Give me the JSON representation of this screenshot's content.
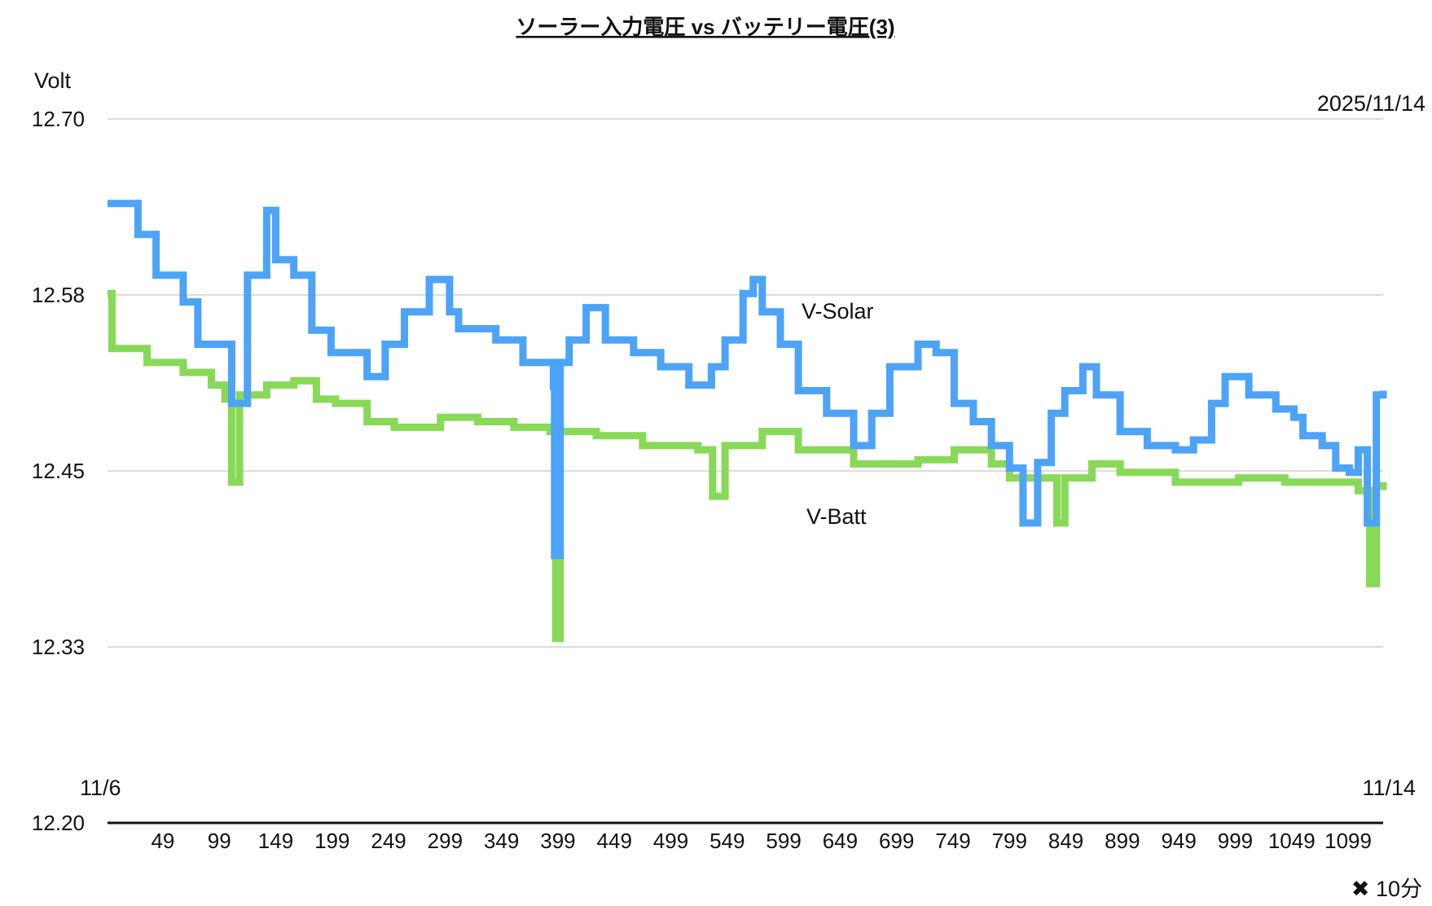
{
  "chart_data": {
    "type": "line",
    "title": "ソーラー入力電圧 vs バッテリー電圧(3)",
    "ylabel": "Volt",
    "xlabel": "✖ 10分",
    "date_label": "2025/11/14",
    "x_start_label": "11/6",
    "x_end_label": "11/14",
    "ylim": [
      12.2,
      12.7
    ],
    "xlim": [
      0,
      1130
    ],
    "grid": true,
    "y_ticks": [
      {
        "value": 12.7,
        "label": "12.70"
      },
      {
        "value": 12.575,
        "label": "12.58"
      },
      {
        "value": 12.45,
        "label": "12.45"
      },
      {
        "value": 12.325,
        "label": "12.33"
      },
      {
        "value": 12.2,
        "label": "12.20"
      }
    ],
    "x_ticks": [
      49,
      99,
      149,
      199,
      249,
      299,
      349,
      399,
      449,
      499,
      549,
      599,
      649,
      699,
      749,
      799,
      849,
      899,
      949,
      999,
      1049,
      1099
    ],
    "x_tick_labels": [
      "49",
      "99",
      "149",
      "199",
      "249",
      "299",
      "349",
      "399",
      "449",
      "499",
      "549",
      "599",
      "649",
      "699",
      "749",
      "799",
      "849",
      "899",
      "949",
      "999",
      "1049",
      "1099"
    ],
    "series": [
      {
        "name": "V-Solar",
        "color": "#4DA3F7",
        "points": [
          [
            0,
            12.64
          ],
          [
            27,
            12.618
          ],
          [
            43,
            12.589
          ],
          [
            67,
            12.57
          ],
          [
            80,
            12.54
          ],
          [
            104,
            12.54
          ],
          [
            110,
            12.498
          ],
          [
            124,
            12.589
          ],
          [
            141,
            12.635
          ],
          [
            149,
            12.6
          ],
          [
            165,
            12.589
          ],
          [
            181,
            12.55
          ],
          [
            198,
            12.534
          ],
          [
            222,
            12.534
          ],
          [
            230,
            12.517
          ],
          [
            246,
            12.54
          ],
          [
            263,
            12.563
          ],
          [
            285,
            12.586
          ],
          [
            303,
            12.563
          ],
          [
            311,
            12.551
          ],
          [
            344,
            12.543
          ],
          [
            368,
            12.527
          ],
          [
            385,
            12.527
          ],
          [
            395,
            12.51
          ],
          [
            396,
            12.39
          ],
          [
            401,
            12.527
          ],
          [
            409,
            12.543
          ],
          [
            424,
            12.566
          ],
          [
            441,
            12.543
          ],
          [
            466,
            12.534
          ],
          [
            490,
            12.524
          ],
          [
            515,
            12.511
          ],
          [
            535,
            12.524
          ],
          [
            547,
            12.543
          ],
          [
            563,
            12.576
          ],
          [
            572,
            12.586
          ],
          [
            580,
            12.563
          ],
          [
            596,
            12.54
          ],
          [
            612,
            12.507
          ],
          [
            637,
            12.491
          ],
          [
            661,
            12.468
          ],
          [
            677,
            12.491
          ],
          [
            693,
            12.524
          ],
          [
            718,
            12.54
          ],
          [
            734,
            12.534
          ],
          [
            750,
            12.498
          ],
          [
            767,
            12.485
          ],
          [
            783,
            12.468
          ],
          [
            799,
            12.452
          ],
          [
            811,
            12.413
          ],
          [
            824,
            12.456
          ],
          [
            836,
            12.491
          ],
          [
            848,
            12.507
          ],
          [
            864,
            12.524
          ],
          [
            876,
            12.504
          ],
          [
            897,
            12.478
          ],
          [
            921,
            12.468
          ],
          [
            946,
            12.465
          ],
          [
            962,
            12.472
          ],
          [
            978,
            12.498
          ],
          [
            990,
            12.517
          ],
          [
            1011,
            12.504
          ],
          [
            1035,
            12.494
          ],
          [
            1051,
            12.488
          ],
          [
            1059,
            12.475
          ],
          [
            1076,
            12.468
          ],
          [
            1088,
            12.452
          ],
          [
            1100,
            12.449
          ],
          [
            1108,
            12.465
          ],
          [
            1116,
            12.413
          ],
          [
            1124,
            12.504
          ],
          [
            1130,
            12.507
          ]
        ]
      },
      {
        "name": "V-Batt",
        "color": "#88D957",
        "points": [
          [
            0,
            12.576
          ],
          [
            4,
            12.537
          ],
          [
            35,
            12.527
          ],
          [
            67,
            12.52
          ],
          [
            92,
            12.511
          ],
          [
            104,
            12.501
          ],
          [
            110,
            12.442
          ],
          [
            117,
            12.504
          ],
          [
            141,
            12.511
          ],
          [
            165,
            12.514
          ],
          [
            185,
            12.501
          ],
          [
            202,
            12.498
          ],
          [
            230,
            12.485
          ],
          [
            254,
            12.481
          ],
          [
            295,
            12.488
          ],
          [
            328,
            12.485
          ],
          [
            360,
            12.481
          ],
          [
            392,
            12.478
          ],
          [
            397,
            12.331
          ],
          [
            401,
            12.478
          ],
          [
            433,
            12.475
          ],
          [
            474,
            12.468
          ],
          [
            523,
            12.465
          ],
          [
            536,
            12.432
          ],
          [
            547,
            12.468
          ],
          [
            580,
            12.478
          ],
          [
            612,
            12.465
          ],
          [
            661,
            12.455
          ],
          [
            718,
            12.458
          ],
          [
            750,
            12.465
          ],
          [
            783,
            12.455
          ],
          [
            799,
            12.445
          ],
          [
            824,
            12.445
          ],
          [
            841,
            12.413
          ],
          [
            848,
            12.445
          ],
          [
            872,
            12.455
          ],
          [
            897,
            12.449
          ],
          [
            946,
            12.442
          ],
          [
            1002,
            12.445
          ],
          [
            1043,
            12.442
          ],
          [
            1076,
            12.442
          ],
          [
            1108,
            12.436
          ],
          [
            1118,
            12.37
          ],
          [
            1124,
            12.439
          ],
          [
            1130,
            12.442
          ]
        ]
      }
    ]
  }
}
